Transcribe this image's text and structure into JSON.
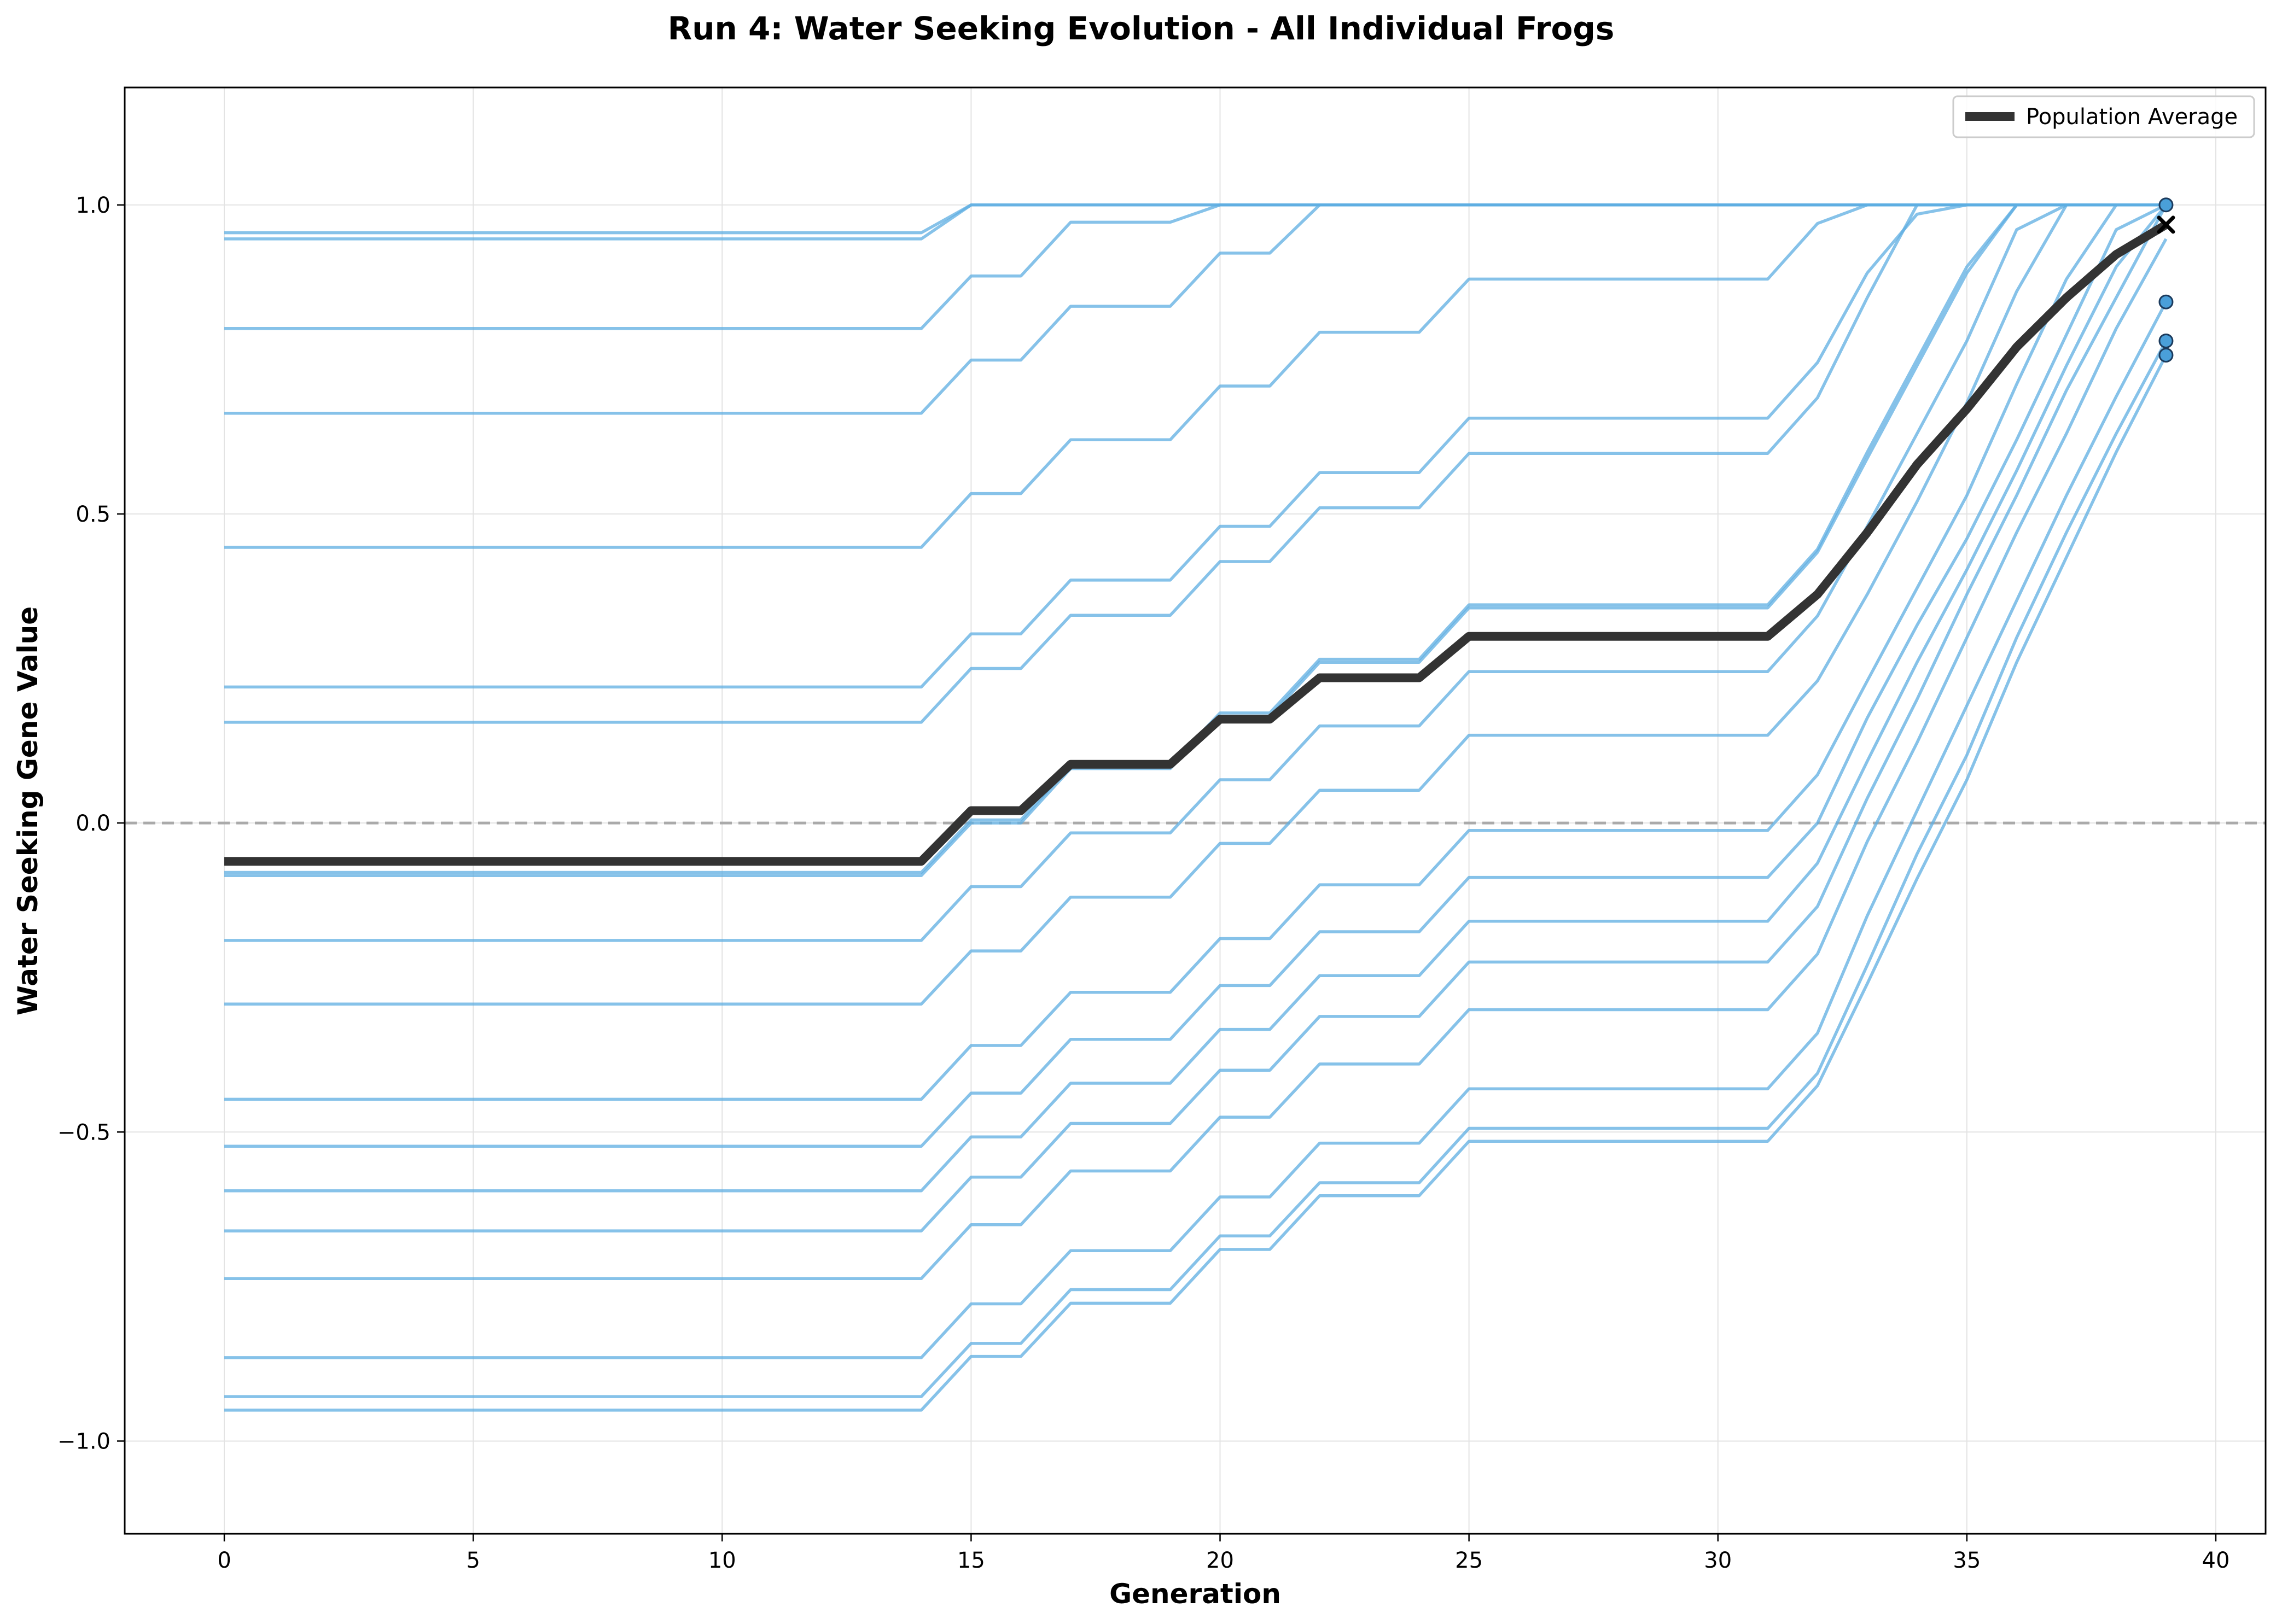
{
  "chart_data": {
    "type": "line",
    "title": "Run 4: Water Seeking Evolution - All Individual Frogs",
    "xlabel": "Generation",
    "ylabel": "Water Seeking Gene Value",
    "xlim": [
      -2,
      41
    ],
    "ylim": [
      -1.15,
      1.19
    ],
    "xticks": [
      0,
      5,
      10,
      15,
      20,
      25,
      30,
      35,
      40
    ],
    "yticks": [
      -1.0,
      -0.5,
      0.0,
      0.5,
      1.0
    ],
    "xtick_labels": [
      "0",
      "5",
      "10",
      "15",
      "20",
      "25",
      "30",
      "35",
      "40"
    ],
    "ytick_labels": [
      "−1.0",
      "−0.5",
      "0.0",
      "0.5",
      "1.0"
    ],
    "grid": true,
    "reference_line": {
      "y": 0.0,
      "style": "dashed",
      "color": "#aaaaaa"
    },
    "legend": {
      "position": "top-right",
      "entries": [
        "Population Average"
      ]
    },
    "colors": {
      "individual": "#5dade2",
      "average": "#333333"
    },
    "x": [
      0,
      14,
      15,
      16,
      17,
      19,
      20,
      21,
      22,
      24,
      25,
      31,
      32,
      33,
      34,
      35,
      36,
      37,
      38,
      39
    ],
    "individuals": [
      {
        "values": [
          0.955,
          0.955,
          1.0,
          1.0,
          1.0,
          1.0,
          1.0,
          1.0,
          1.0,
          1.0,
          1.0,
          1.0,
          1.0,
          1.0,
          1.0,
          1.0,
          1.0,
          1.0,
          1.0,
          1.0
        ]
      },
      {
        "values": [
          0.945,
          0.945,
          1.0,
          1.0,
          1.0,
          1.0,
          1.0,
          1.0,
          1.0,
          1.0,
          1.0,
          1.0,
          1.0,
          1.0,
          1.0,
          1.0,
          1.0,
          1.0,
          1.0,
          1.0
        ]
      },
      {
        "values": [
          0.8,
          0.8,
          0.885,
          0.885,
          0.972,
          0.972,
          1.0,
          1.0,
          1.0,
          1.0,
          1.0,
          1.0,
          1.0,
          1.0,
          1.0,
          1.0,
          1.0,
          1.0,
          1.0,
          1.0
        ]
      },
      {
        "values": [
          0.663,
          0.663,
          0.749,
          0.749,
          0.836,
          0.836,
          0.922,
          0.922,
          1.0,
          1.0,
          1.0,
          1.0,
          1.0,
          1.0,
          1.0,
          1.0,
          1.0,
          1.0,
          1.0,
          1.0
        ]
      },
      {
        "values": [
          0.446,
          0.446,
          0.533,
          0.533,
          0.62,
          0.62,
          0.707,
          0.707,
          0.794,
          0.794,
          0.88,
          0.88,
          0.97,
          1.0,
          1.0,
          1.0,
          1.0,
          1.0,
          1.0,
          1.0
        ]
      },
      {
        "values": [
          0.22,
          0.22,
          0.306,
          0.306,
          0.393,
          0.393,
          0.48,
          0.48,
          0.567,
          0.567,
          0.655,
          0.655,
          0.745,
          0.89,
          0.985,
          1.0,
          1.0,
          1.0,
          1.0,
          1.0
        ]
      },
      {
        "values": [
          0.163,
          0.163,
          0.25,
          0.25,
          0.336,
          0.336,
          0.423,
          0.423,
          0.51,
          0.51,
          0.598,
          0.598,
          0.688,
          0.85,
          1.0,
          1.0,
          1.0,
          1.0,
          1.0,
          1.0
        ]
      },
      {
        "values": [
          -0.08,
          -0.08,
          0.005,
          0.005,
          0.093,
          0.093,
          0.178,
          0.178,
          0.265,
          0.265,
          0.353,
          0.353,
          0.443,
          0.6,
          0.75,
          0.9,
          1.0,
          1.0,
          1.0,
          1.0
        ]
      },
      {
        "values": [
          -0.085,
          -0.085,
          0.0,
          0.0,
          0.088,
          0.088,
          0.172,
          0.172,
          0.26,
          0.26,
          0.348,
          0.348,
          0.438,
          0.59,
          0.74,
          0.89,
          1.0,
          1.0,
          1.0,
          1.0
        ]
      },
      {
        "values": [
          -0.19,
          -0.19,
          -0.103,
          -0.103,
          -0.016,
          -0.016,
          0.07,
          0.07,
          0.157,
          0.157,
          0.245,
          0.245,
          0.335,
          0.48,
          0.63,
          0.78,
          0.96,
          1.0,
          1.0,
          1.0
        ]
      },
      {
        "values": [
          -0.293,
          -0.293,
          -0.207,
          -0.207,
          -0.12,
          -0.12,
          -0.033,
          -0.033,
          0.053,
          0.053,
          0.142,
          0.142,
          0.23,
          0.37,
          0.52,
          0.68,
          0.86,
          1.0,
          1.0,
          1.0
        ]
      },
      {
        "values": [
          -0.447,
          -0.447,
          -0.36,
          -0.36,
          -0.274,
          -0.274,
          -0.187,
          -0.187,
          -0.1,
          -0.1,
          -0.012,
          -0.012,
          0.078,
          0.23,
          0.38,
          0.53,
          0.71,
          0.88,
          1.0,
          1.0
        ]
      },
      {
        "values": [
          -0.523,
          -0.523,
          -0.437,
          -0.437,
          -0.35,
          -0.35,
          -0.263,
          -0.263,
          -0.176,
          -0.176,
          -0.088,
          -0.088,
          0.0,
          0.17,
          0.32,
          0.46,
          0.62,
          0.79,
          0.96,
          1.0
        ]
      },
      {
        "values": [
          -0.595,
          -0.595,
          -0.508,
          -0.508,
          -0.421,
          -0.421,
          -0.334,
          -0.334,
          -0.247,
          -0.247,
          -0.159,
          -0.159,
          -0.065,
          0.1,
          0.26,
          0.41,
          0.57,
          0.74,
          0.9,
          1.0
        ]
      },
      {
        "values": [
          -0.66,
          -0.66,
          -0.573,
          -0.573,
          -0.486,
          -0.486,
          -0.4,
          -0.4,
          -0.313,
          -0.313,
          -0.225,
          -0.225,
          -0.135,
          0.04,
          0.2,
          0.37,
          0.53,
          0.7,
          0.85,
          1.0
        ]
      },
      {
        "values": [
          -0.737,
          -0.737,
          -0.65,
          -0.65,
          -0.563,
          -0.563,
          -0.476,
          -0.476,
          -0.39,
          -0.39,
          -0.302,
          -0.302,
          -0.212,
          -0.03,
          0.13,
          0.3,
          0.47,
          0.63,
          0.8,
          0.945
        ]
      },
      {
        "values": [
          -0.865,
          -0.865,
          -0.778,
          -0.778,
          -0.692,
          -0.692,
          -0.605,
          -0.605,
          -0.518,
          -0.518,
          -0.43,
          -0.43,
          -0.34,
          -0.15,
          0.02,
          0.19,
          0.36,
          0.53,
          0.69,
          0.843
        ]
      },
      {
        "values": [
          -0.928,
          -0.928,
          -0.842,
          -0.842,
          -0.755,
          -0.755,
          -0.668,
          -0.668,
          -0.582,
          -0.582,
          -0.494,
          -0.494,
          -0.405,
          -0.23,
          -0.05,
          0.11,
          0.3,
          0.47,
          0.63,
          0.78
        ]
      },
      {
        "values": [
          -0.95,
          -0.95,
          -0.863,
          -0.863,
          -0.777,
          -0.777,
          -0.69,
          -0.69,
          -0.603,
          -0.603,
          -0.515,
          -0.515,
          -0.425,
          -0.26,
          -0.09,
          0.07,
          0.26,
          0.43,
          0.6,
          0.757
        ]
      }
    ],
    "series": [
      {
        "name": "Population Average",
        "values": [
          -0.062,
          -0.062,
          0.02,
          0.02,
          0.095,
          0.095,
          0.168,
          0.168,
          0.235,
          0.235,
          0.302,
          0.302,
          0.37,
          0.47,
          0.58,
          0.67,
          0.77,
          0.85,
          0.92,
          0.968
        ]
      }
    ],
    "final_generation": 39,
    "final_values": [
      1.0,
      0.843,
      0.78,
      0.757
    ],
    "final_average": 0.968
  }
}
